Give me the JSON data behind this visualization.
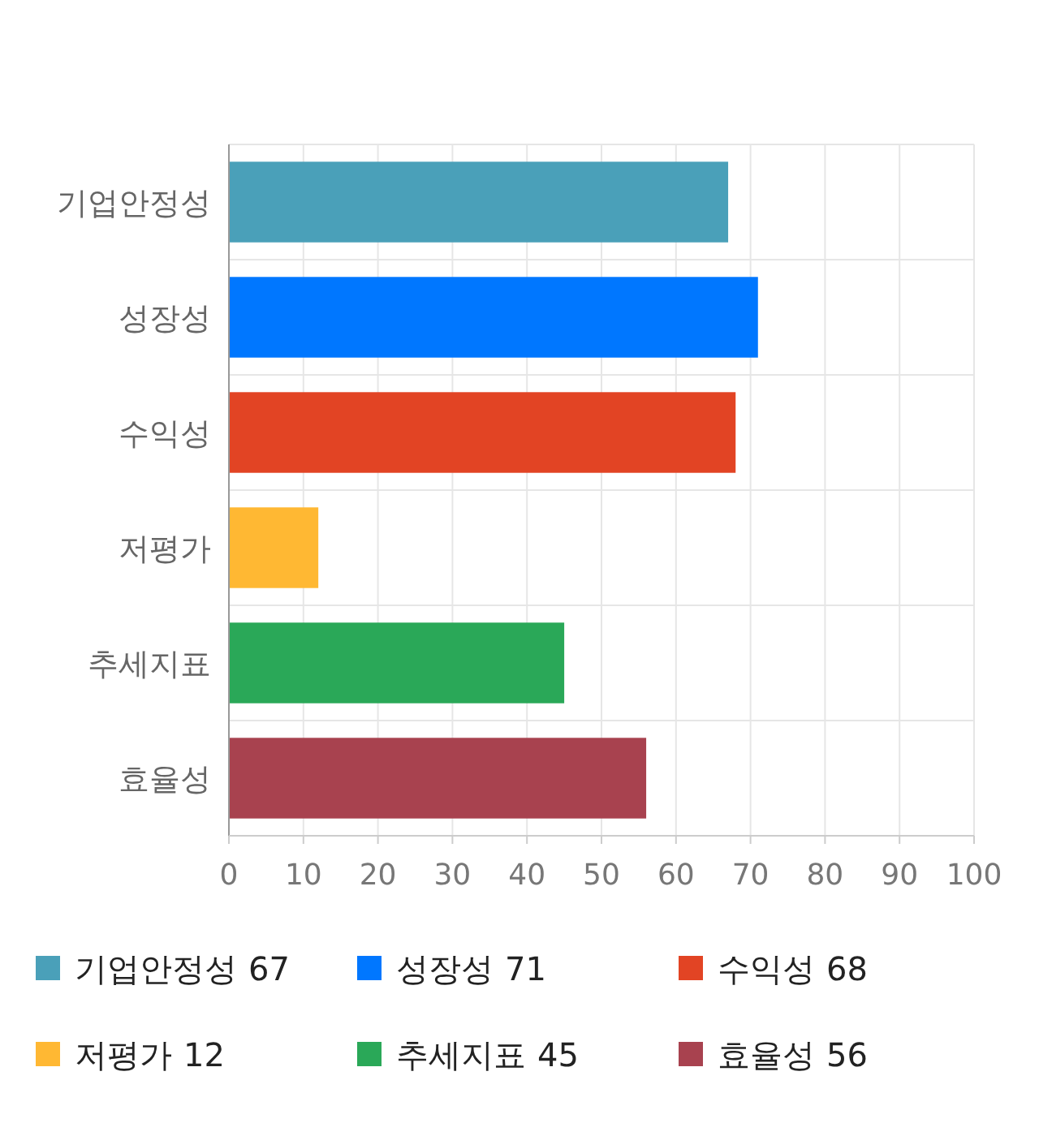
{
  "chart_data": {
    "type": "bar",
    "orientation": "horizontal",
    "stacked": true,
    "categories": [
      "기업안정성",
      "성장성",
      "수익성",
      "저평가",
      "추세지표",
      "효율성"
    ],
    "series": [
      {
        "name": "기업안정성",
        "color": "#4aa0b9",
        "values": [
          67,
          null,
          null,
          null,
          null,
          null
        ]
      },
      {
        "name": "성장성",
        "color": "#0077ff",
        "values": [
          null,
          71,
          null,
          null,
          null,
          null
        ]
      },
      {
        "name": "수익성",
        "color": "#e24424",
        "values": [
          null,
          null,
          68,
          null,
          null,
          null
        ]
      },
      {
        "name": "저평가",
        "color": "#ffb833",
        "values": [
          null,
          null,
          null,
          12,
          null,
          null
        ]
      },
      {
        "name": "추세지표",
        "color": "#2aa858",
        "values": [
          null,
          null,
          null,
          null,
          45,
          null
        ]
      },
      {
        "name": "효율성",
        "color": "#a8424f",
        "values": [
          null,
          null,
          null,
          null,
          null,
          56
        ]
      }
    ],
    "annotations": [
      "67",
      "71",
      "68",
      "12",
      "45",
      "56"
    ],
    "xlim": [
      0,
      100
    ],
    "xticks": [
      0,
      10,
      20,
      30,
      40,
      50,
      60,
      70,
      80,
      90,
      100
    ],
    "grid": true,
    "legend": "bottom"
  }
}
